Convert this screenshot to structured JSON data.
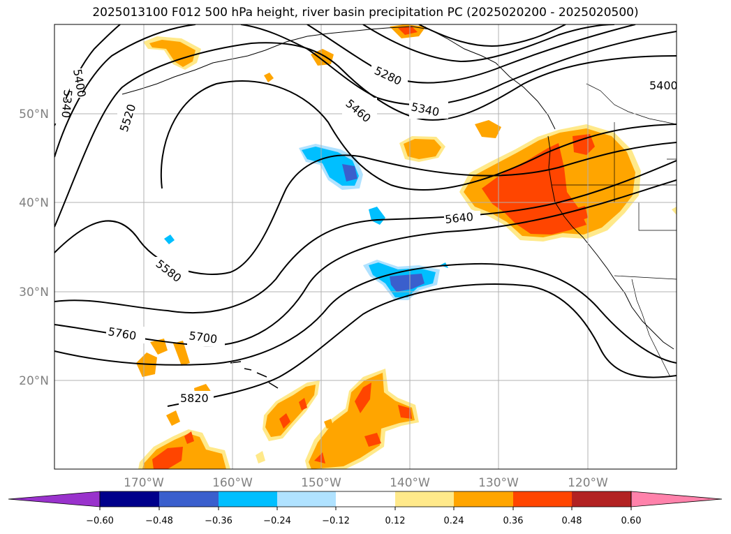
{
  "title": "2025013100 F012 500 hPa height, river basin precipitation PC (2025020200 - 2025020500)",
  "map": {
    "lon_range": [
      -180,
      -110
    ],
    "lat_range": [
      10,
      60
    ],
    "lon_gridlines": [
      -170,
      -160,
      -150,
      -140,
      -130,
      -120
    ],
    "lat_gridlines": [
      20,
      30,
      40,
      50
    ],
    "lon_tick_labels": [
      "170°W",
      "160°W",
      "150°W",
      "140°W",
      "130°W",
      "120°W"
    ],
    "lat_tick_labels": [
      "20°N",
      "30°N",
      "40°N",
      "50°N"
    ],
    "grid": true
  },
  "height_contour_labels": [
    {
      "text": "5400",
      "id": "5400-left"
    },
    {
      "text": "5340",
      "id": "5340-left"
    },
    {
      "text": "5520",
      "id": "5520"
    },
    {
      "text": "5460",
      "id": "5460"
    },
    {
      "text": "5280",
      "id": "5280"
    },
    {
      "text": "5340",
      "id": "5340-right"
    },
    {
      "text": "5400",
      "id": "5400-right"
    },
    {
      "text": "5640",
      "id": "5640"
    },
    {
      "text": "5580",
      "id": "5580"
    },
    {
      "text": "5760",
      "id": "5760"
    },
    {
      "text": "5700",
      "id": "5700"
    },
    {
      "text": "5820",
      "id": "5820"
    }
  ],
  "colorbar": {
    "ticks": [
      "−0.60",
      "−0.48",
      "−0.36",
      "−0.24",
      "−0.12",
      "0.12",
      "0.24",
      "0.36",
      "0.48",
      "0.60"
    ],
    "colors": [
      "#9932cc",
      "#00008b",
      "#3a5fcd",
      "#00bfff",
      "#b0e2ff",
      "#ffffff",
      "#ffe98a",
      "#ffa500",
      "#ff4500",
      "#b22222",
      "#ff82ab"
    ]
  }
}
